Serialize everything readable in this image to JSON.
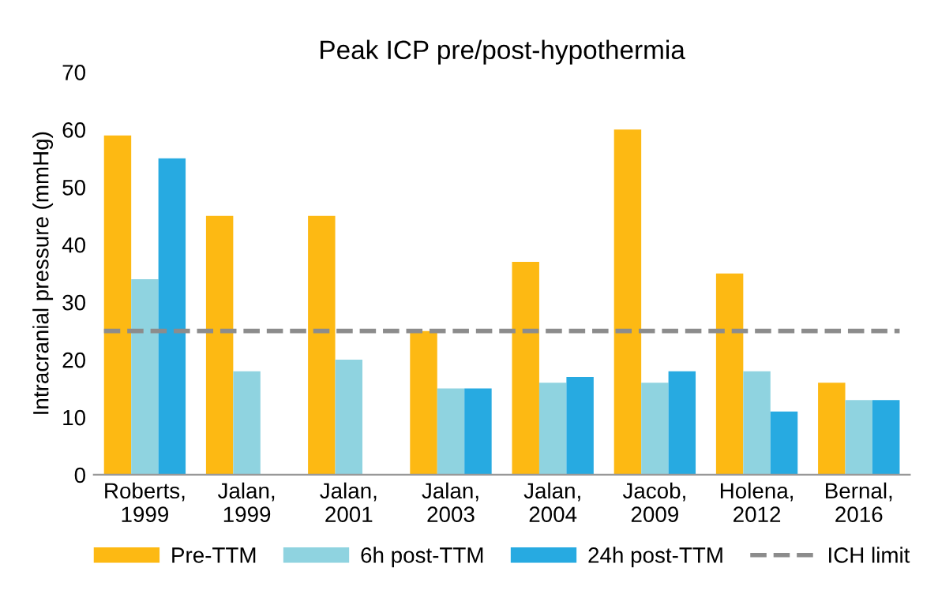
{
  "chart_data": {
    "type": "bar",
    "title": "Peak ICP pre/post-hypothermia",
    "ylabel": "Intracranial pressure (mmHg)",
    "categories": [
      "Roberts, 1999",
      "Jalan, 1999",
      "Jalan, 2001",
      "Jalan, 2003",
      "Jalan, 2004",
      "Jacob, 2009",
      "Holena, 2012",
      "Bernal, 2016"
    ],
    "series": [
      {
        "name": "Pre-TTM",
        "color": "#fdb913",
        "values": [
          59,
          45,
          45,
          25,
          37,
          60,
          35,
          16
        ]
      },
      {
        "name": "6h post-TTM",
        "color": "#8fd3e0",
        "values": [
          34,
          18,
          20,
          15,
          16,
          16,
          18,
          13
        ]
      },
      {
        "name": "24h post-TTM",
        "color": "#27aae1",
        "values": [
          55,
          null,
          null,
          15,
          17,
          18,
          11,
          13
        ]
      }
    ],
    "ref_lines": [
      {
        "axis": "y",
        "value": 25,
        "label": "ICH limit",
        "color": "#8c8c8c",
        "line_style": "dashed"
      }
    ],
    "ylim": [
      0,
      70
    ],
    "yticks": [
      0,
      10,
      20,
      30,
      40,
      50,
      60,
      70
    ],
    "grid": false,
    "legend": "bottom"
  }
}
